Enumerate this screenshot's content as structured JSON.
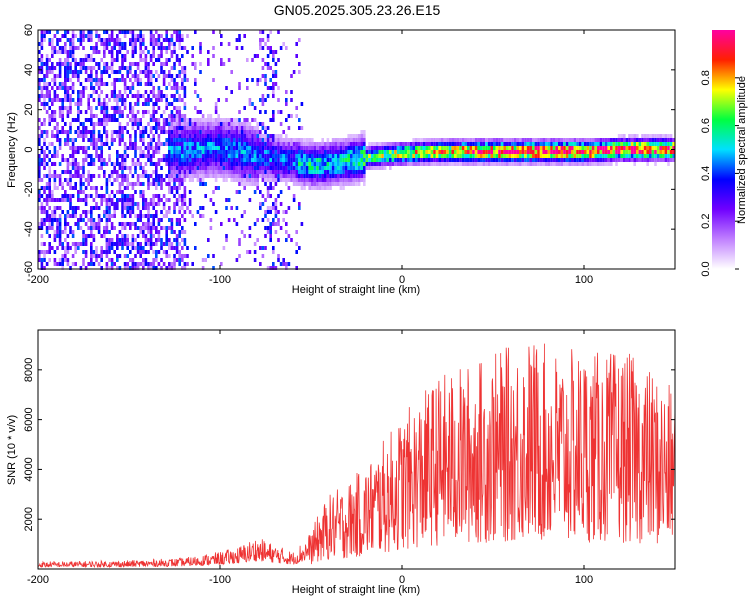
{
  "title": "GN05.2025.305.23.26.E15",
  "chart_data": [
    {
      "type": "heatmap",
      "xlabel": "Height of straight line (km)",
      "ylabel": "Frequency (Hz)",
      "xlim": [
        -200,
        150
      ],
      "ylim": [
        -60,
        60
      ],
      "xticks": [
        -200,
        -100,
        0,
        100
      ],
      "yticks": [
        -60,
        -40,
        -20,
        0,
        20,
        40,
        60
      ],
      "colorbar": {
        "label": "Normalized spectral amplitude",
        "range": [
          0,
          1
        ],
        "ticks": [
          0.0,
          0.2,
          0.4,
          0.6,
          0.8
        ],
        "colors": [
          "#ffffff",
          "#c080ff",
          "#7000ff",
          "#0000ff",
          "#00e0ff",
          "#00ff40",
          "#ffff00",
          "#ff2000",
          "#ff00a0"
        ]
      },
      "ridge": {
        "x": [
          -130,
          -100,
          -80,
          -60,
          -50,
          -40,
          -30,
          -20,
          0,
          20,
          50,
          80,
          100,
          120,
          150
        ],
        "frequency": [
          0,
          2,
          -2,
          -5,
          -7,
          -6,
          -5,
          -3,
          -1,
          0,
          0,
          0,
          0,
          1,
          1
        ]
      }
    },
    {
      "type": "line",
      "xlabel": "Height of straight line (km)",
      "ylabel": "SNR (10 * v/v)",
      "xlim": [
        -200,
        150
      ],
      "ylim": [
        0,
        9600
      ],
      "xticks": [
        -200,
        -100,
        0,
        100
      ],
      "yticks": [
        2000,
        4000,
        6000,
        8000
      ],
      "color": "#ee3333",
      "envelope": {
        "x": [
          -200,
          -150,
          -120,
          -100,
          -90,
          -80,
          -70,
          -60,
          -50,
          -45,
          -40,
          -30,
          -20,
          -10,
          0,
          10,
          20,
          30,
          40,
          50,
          60,
          70,
          80,
          90,
          100,
          110,
          120,
          130,
          140,
          150
        ],
        "y": [
          300,
          350,
          450,
          700,
          900,
          1300,
          1000,
          700,
          1500,
          2400,
          3000,
          3500,
          4200,
          5200,
          6200,
          7000,
          7800,
          8100,
          8400,
          8700,
          9000,
          9400,
          9000,
          8800,
          8900,
          8700,
          8800,
          8500,
          7800,
          7200
        ]
      }
    }
  ]
}
